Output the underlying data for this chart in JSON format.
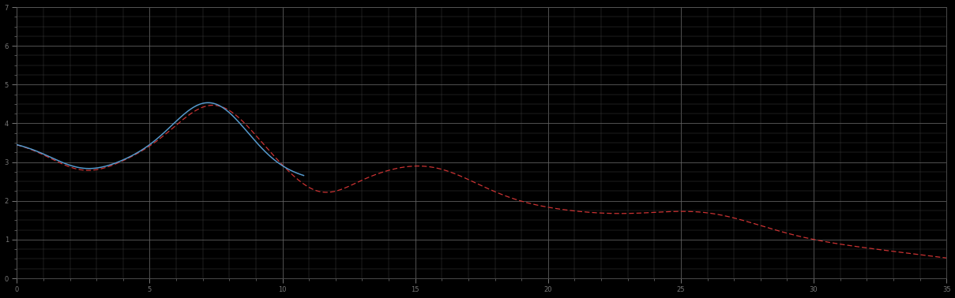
{
  "background_color": "#000000",
  "plot_bg_color": "#000000",
  "grid_minor_color": "#444444",
  "grid_major_color": "#666666",
  "line_blue_color": "#5599cc",
  "line_red_color": "#cc3333",
  "figsize": [
    12.09,
    3.78
  ],
  "dpi": 100,
  "xlim": [
    0,
    35
  ],
  "ylim": [
    0,
    7
  ],
  "x_minor_step": 1,
  "y_minor_step": 0.25,
  "x_major_step": 5,
  "y_major_step": 1
}
